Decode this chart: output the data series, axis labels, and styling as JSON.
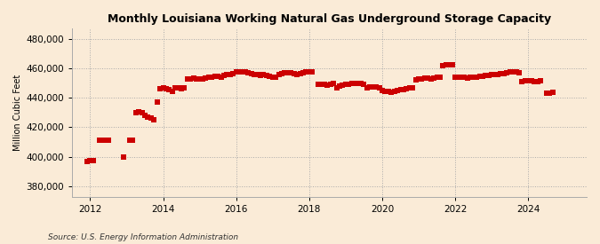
{
  "title": "Monthly Louisiana Working Natural Gas Underground Storage Capacity",
  "ylabel": "Million Cubic Feet",
  "source": "Source: U.S. Energy Information Administration",
  "bg_color": "#faebd7",
  "line_color": "#cc0000",
  "marker": "s",
  "marker_size": 4,
  "ylim": [
    373000,
    487000
  ],
  "yticks": [
    380000,
    400000,
    420000,
    440000,
    460000,
    480000
  ],
  "xlim_start": 2011.5,
  "xlim_end": 2025.6,
  "xticks": [
    2012,
    2014,
    2016,
    2018,
    2020,
    2022,
    2024
  ],
  "monthly_data": [
    [
      2011.917,
      397000
    ],
    [
      2012.0,
      397500
    ],
    [
      2012.083,
      397200
    ],
    [
      2012.25,
      411200
    ],
    [
      2012.333,
      411000
    ],
    [
      2012.417,
      411500
    ],
    [
      2012.5,
      411000
    ],
    [
      2012.917,
      400000
    ],
    [
      2013.083,
      411500
    ],
    [
      2013.167,
      411000
    ],
    [
      2013.25,
      430000
    ],
    [
      2013.333,
      430500
    ],
    [
      2013.417,
      430000
    ],
    [
      2013.5,
      428000
    ],
    [
      2013.583,
      427000
    ],
    [
      2013.667,
      426000
    ],
    [
      2013.75,
      425000
    ],
    [
      2013.833,
      437000
    ],
    [
      2013.917,
      446000
    ],
    [
      2014.0,
      446500
    ],
    [
      2014.083,
      446000
    ],
    [
      2014.167,
      445500
    ],
    [
      2014.25,
      444500
    ],
    [
      2014.333,
      447000
    ],
    [
      2014.417,
      446500
    ],
    [
      2014.5,
      446000
    ],
    [
      2014.583,
      447000
    ],
    [
      2014.667,
      452500
    ],
    [
      2014.75,
      453000
    ],
    [
      2014.833,
      453500
    ],
    [
      2014.917,
      453000
    ],
    [
      2015.0,
      452500
    ],
    [
      2015.083,
      453000
    ],
    [
      2015.167,
      453500
    ],
    [
      2015.25,
      453800
    ],
    [
      2015.333,
      454000
    ],
    [
      2015.417,
      454300
    ],
    [
      2015.5,
      454500
    ],
    [
      2015.583,
      454200
    ],
    [
      2015.667,
      455000
    ],
    [
      2015.75,
      455500
    ],
    [
      2015.833,
      456000
    ],
    [
      2015.917,
      456500
    ],
    [
      2016.0,
      457500
    ],
    [
      2016.083,
      457800
    ],
    [
      2016.167,
      457500
    ],
    [
      2016.25,
      457300
    ],
    [
      2016.333,
      457000
    ],
    [
      2016.417,
      456500
    ],
    [
      2016.5,
      456000
    ],
    [
      2016.583,
      455500
    ],
    [
      2016.667,
      455000
    ],
    [
      2016.75,
      455500
    ],
    [
      2016.833,
      455000
    ],
    [
      2016.917,
      454500
    ],
    [
      2017.0,
      454200
    ],
    [
      2017.083,
      454000
    ],
    [
      2017.167,
      456000
    ],
    [
      2017.25,
      456500
    ],
    [
      2017.333,
      457000
    ],
    [
      2017.417,
      457200
    ],
    [
      2017.5,
      456800
    ],
    [
      2017.583,
      456500
    ],
    [
      2017.667,
      456000
    ],
    [
      2017.75,
      456500
    ],
    [
      2017.833,
      457000
    ],
    [
      2017.917,
      457500
    ],
    [
      2018.0,
      457800
    ],
    [
      2018.083,
      457500
    ],
    [
      2018.25,
      449000
    ],
    [
      2018.333,
      449200
    ],
    [
      2018.417,
      449000
    ],
    [
      2018.5,
      448800
    ],
    [
      2018.583,
      449000
    ],
    [
      2018.667,
      449500
    ],
    [
      2018.75,
      447000
    ],
    [
      2018.833,
      448000
    ],
    [
      2018.917,
      448500
    ],
    [
      2019.0,
      449000
    ],
    [
      2019.083,
      449200
    ],
    [
      2019.167,
      449500
    ],
    [
      2019.25,
      449800
    ],
    [
      2019.333,
      450000
    ],
    [
      2019.417,
      449700
    ],
    [
      2019.5,
      449000
    ],
    [
      2019.583,
      447000
    ],
    [
      2019.667,
      447500
    ],
    [
      2019.75,
      447500
    ],
    [
      2019.833,
      447200
    ],
    [
      2019.917,
      447000
    ],
    [
      2020.0,
      445000
    ],
    [
      2020.083,
      444500
    ],
    [
      2020.167,
      444200
    ],
    [
      2020.25,
      444000
    ],
    [
      2020.333,
      444500
    ],
    [
      2020.417,
      445000
    ],
    [
      2020.5,
      445300
    ],
    [
      2020.583,
      445500
    ],
    [
      2020.667,
      446000
    ],
    [
      2020.75,
      446500
    ],
    [
      2020.833,
      447000
    ],
    [
      2020.917,
      452000
    ],
    [
      2021.0,
      452500
    ],
    [
      2021.083,
      453000
    ],
    [
      2021.167,
      453500
    ],
    [
      2021.25,
      453200
    ],
    [
      2021.333,
      453000
    ],
    [
      2021.417,
      453500
    ],
    [
      2021.5,
      453800
    ],
    [
      2021.583,
      454000
    ],
    [
      2021.667,
      462000
    ],
    [
      2021.75,
      462500
    ],
    [
      2021.833,
      462300
    ],
    [
      2021.917,
      462100
    ],
    [
      2022.0,
      454000
    ],
    [
      2022.083,
      454200
    ],
    [
      2022.167,
      454000
    ],
    [
      2022.25,
      453800
    ],
    [
      2022.333,
      453500
    ],
    [
      2022.417,
      453800
    ],
    [
      2022.5,
      454000
    ],
    [
      2022.583,
      454200
    ],
    [
      2022.667,
      454500
    ],
    [
      2022.75,
      454800
    ],
    [
      2022.833,
      455000
    ],
    [
      2022.917,
      455200
    ],
    [
      2023.0,
      455500
    ],
    [
      2023.083,
      455800
    ],
    [
      2023.167,
      456000
    ],
    [
      2023.25,
      456200
    ],
    [
      2023.333,
      456500
    ],
    [
      2023.417,
      457000
    ],
    [
      2023.5,
      457500
    ],
    [
      2023.583,
      457800
    ],
    [
      2023.667,
      457500
    ],
    [
      2023.75,
      457000
    ],
    [
      2023.833,
      451000
    ],
    [
      2023.917,
      451500
    ],
    [
      2024.0,
      451800
    ],
    [
      2024.083,
      451500
    ],
    [
      2024.167,
      451000
    ],
    [
      2024.25,
      451200
    ],
    [
      2024.333,
      451500
    ],
    [
      2024.5,
      443000
    ],
    [
      2024.583,
      443200
    ],
    [
      2024.667,
      443500
    ]
  ]
}
